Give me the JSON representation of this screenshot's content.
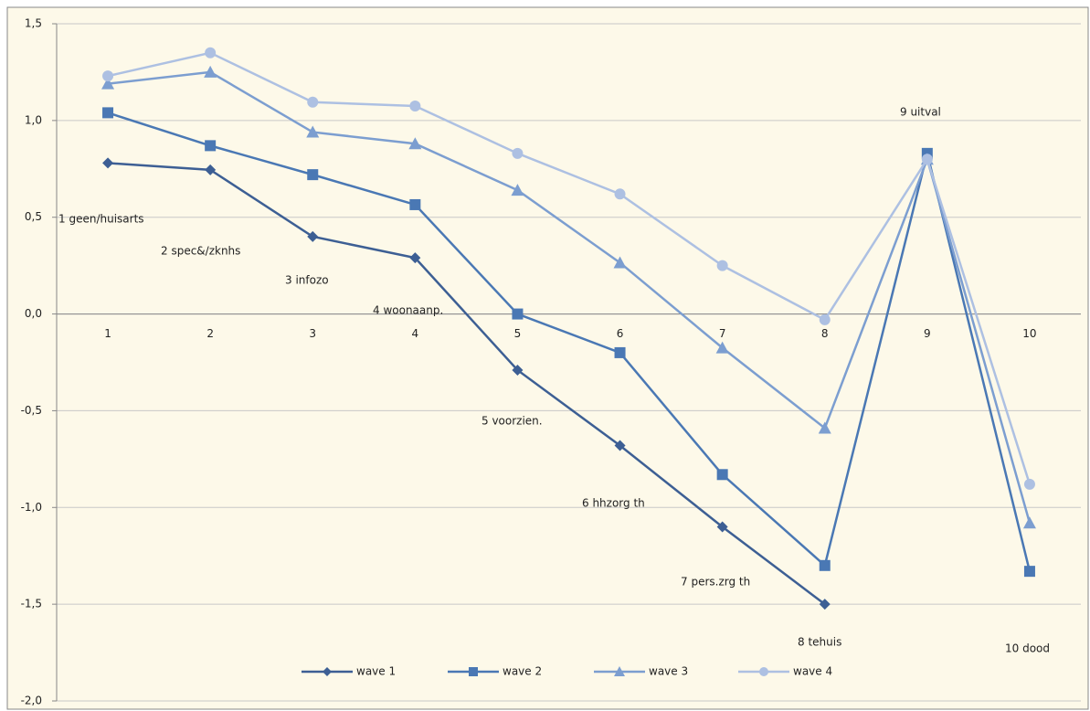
{
  "chart_data": {
    "type": "line",
    "categories": [
      "1",
      "2",
      "3",
      "4",
      "5",
      "6",
      "7",
      "8",
      "9",
      "10"
    ],
    "series": [
      {
        "name": "wave 1",
        "color": "#3d5f94",
        "marker": "diamond",
        "values": [
          0.78,
          0.745,
          0.4,
          0.29,
          -0.29,
          -0.68,
          -1.1,
          -1.5,
          null,
          null
        ]
      },
      {
        "name": "wave 2",
        "color": "#4a78b4",
        "marker": "square",
        "values": [
          1.04,
          0.87,
          0.72,
          0.565,
          0.0,
          -0.2,
          -0.83,
          -1.3,
          0.83,
          -1.33
        ]
      },
      {
        "name": "wave 3",
        "color": "#7c9ed0",
        "marker": "triangle",
        "values": [
          1.19,
          1.25,
          0.94,
          0.88,
          0.64,
          0.265,
          -0.175,
          -0.59,
          0.8,
          -1.08
        ]
      },
      {
        "name": "wave 4",
        "color": "#adc0e2",
        "marker": "circle",
        "values": [
          1.23,
          1.35,
          1.095,
          1.075,
          0.83,
          0.62,
          0.25,
          -0.03,
          0.8,
          -0.88
        ]
      }
    ],
    "annotations": [
      "1 geen/huisarts",
      "2 spec&/zknhs",
      "3 infozo",
      "4 woonaanp.",
      "5 voorzien.",
      "6 hhzorg th",
      "7 pers.zrg th",
      "8 tehuis",
      "9 uitval",
      "10 dood"
    ],
    "ylim": [
      -2.0,
      1.5
    ],
    "yticks": [
      {
        "value": -2.0,
        "label": "-2,0"
      },
      {
        "value": -1.5,
        "label": "-1,5"
      },
      {
        "value": -1.0,
        "label": "-1,0"
      },
      {
        "value": -0.5,
        "label": "-0,5"
      },
      {
        "value": 0.0,
        "label": "0,0"
      },
      {
        "value": 0.5,
        "label": "0,5"
      },
      {
        "value": 1.0,
        "label": "1,0"
      },
      {
        "value": 1.5,
        "label": "1,5"
      }
    ],
    "grid": true,
    "legend": "bottom"
  }
}
